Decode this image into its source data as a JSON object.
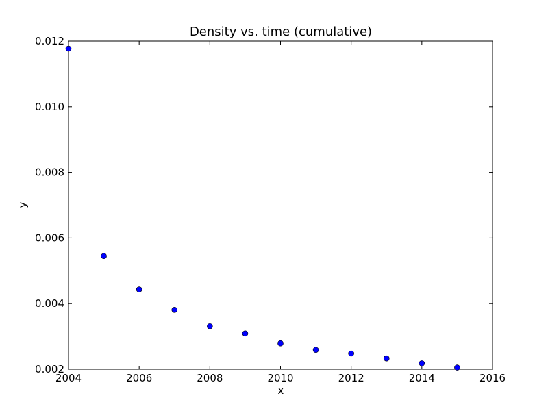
{
  "chart_data": {
    "type": "scatter",
    "title": "Density vs. time (cumulative)",
    "xlabel": "x",
    "ylabel": "y",
    "xlim": [
      2004,
      2016
    ],
    "ylim": [
      0.002,
      0.012
    ],
    "x_ticks": [
      "2004",
      "2006",
      "2008",
      "2010",
      "2012",
      "2014",
      "2016"
    ],
    "x_tick_values": [
      2004,
      2006,
      2008,
      2010,
      2012,
      2014,
      2016
    ],
    "y_ticks": [
      "0.002",
      "0.004",
      "0.006",
      "0.008",
      "0.010",
      "0.012"
    ],
    "y_tick_values": [
      0.002,
      0.004,
      0.006,
      0.008,
      0.01,
      0.012
    ],
    "grid": false,
    "series": [
      {
        "marker_color": "#0000ff",
        "marker_edge": "#000000",
        "x": [
          2004,
          2005,
          2006,
          2007,
          2008,
          2009,
          2010,
          2011,
          2012,
          2013,
          2014,
          2015
        ],
        "y": [
          0.01177,
          0.00545,
          0.00443,
          0.00381,
          0.00331,
          0.00309,
          0.00279,
          0.00259,
          0.00248,
          0.00233,
          0.00218,
          0.00205
        ]
      }
    ]
  }
}
